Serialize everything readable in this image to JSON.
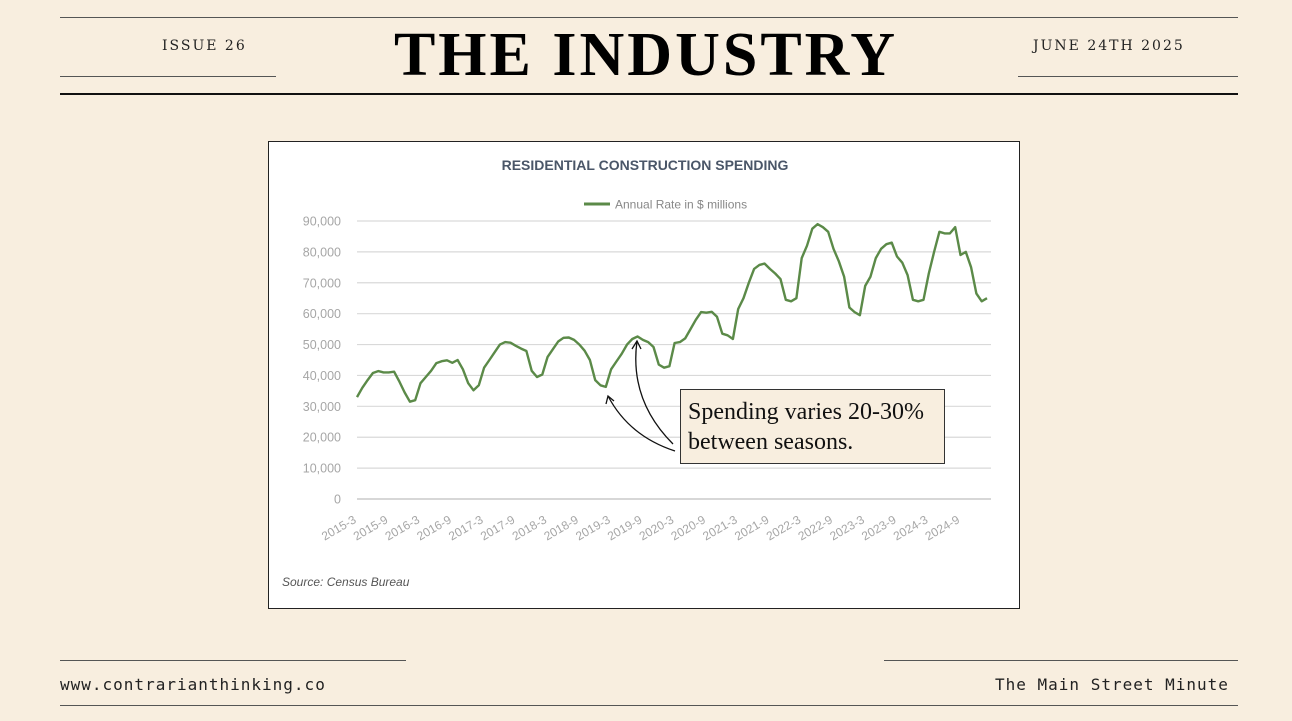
{
  "header": {
    "issue": "ISSUE 26",
    "title": "THE INDUSTRY",
    "date": "JUNE 24TH 2025"
  },
  "footer": {
    "website": "www.contrarianthinking.co",
    "newsletter": "The Main Street Minute"
  },
  "annotation": {
    "line1": "Spending varies 20-30%",
    "line2": "between seasons."
  },
  "chart_data": {
    "type": "line",
    "title": "RESIDENTIAL CONSTRUCTION SPENDING",
    "legend": "top-center",
    "source": "Source: Census Bureau",
    "series": [
      {
        "name": "Annual Rate in $ millions",
        "color": "#5b8a48",
        "values": [
          33000,
          36000,
          38500,
          40800,
          41400,
          41000,
          41000,
          41200,
          38000,
          34500,
          31500,
          32000,
          37500,
          39500,
          41500,
          44000,
          44600,
          44900,
          44100,
          45000,
          42000,
          37500,
          35200,
          36800,
          42500,
          45000,
          47500,
          50000,
          50800,
          50600,
          49600,
          48700,
          47900,
          41500,
          39500,
          40300,
          46000,
          48500,
          51000,
          52200,
          52300,
          51500,
          50000,
          48000,
          45000,
          38500,
          36800,
          36300,
          42000,
          44500,
          47000,
          50000,
          51800,
          52600,
          51500,
          50800,
          49200,
          43500,
          42500,
          43000,
          50500,
          50800,
          52000,
          55000,
          58000,
          60500,
          60300,
          60600,
          59000,
          53500,
          53000,
          51800,
          61500,
          65000,
          70000,
          74500,
          75800,
          76200,
          74500,
          73000,
          71200,
          64500,
          64000,
          65000,
          78000,
          82000,
          87500,
          89000,
          88000,
          86500,
          81000,
          77000,
          72000,
          62000,
          60500,
          59500,
          69000,
          72000,
          78000,
          81000,
          82500,
          83000,
          78500,
          76500,
          72500,
          64500,
          64000,
          64500,
          73000,
          80000,
          86500,
          86000,
          86000,
          88000,
          79000,
          80000,
          75000,
          66500,
          64000,
          65000
        ]
      }
    ],
    "x_tick_labels": [
      "2015-3",
      "2015-9",
      "2016-3",
      "2016-9",
      "2017-3",
      "2017-9",
      "2018-3",
      "2018-9",
      "2019-3",
      "2019-9",
      "2020-3",
      "2020-9",
      "2021-3",
      "2021-9",
      "2022-3",
      "2022-9",
      "2023-3",
      "2023-9",
      "2024-3",
      "2024-9"
    ],
    "y_tick_labels": [
      "0",
      "10,000",
      "20,000",
      "30,000",
      "40,000",
      "50,000",
      "60,000",
      "70,000",
      "80,000",
      "90,000"
    ],
    "ylim": [
      0,
      90000
    ],
    "grid": true,
    "colors": {
      "line": "#5b8a48",
      "grid": "#d9d9d9",
      "tick_text": "#a6a6a6",
      "title": "#4a5668"
    }
  }
}
